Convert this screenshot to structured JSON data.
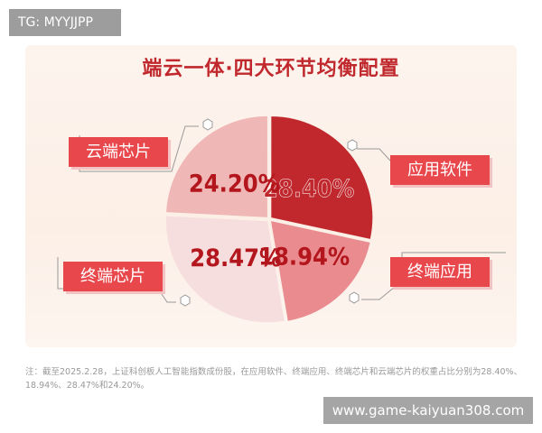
{
  "overlay_tag": "TG: MYYJJPP",
  "watermark": "www.game-kaiyuan308.com",
  "chart_data": {
    "type": "pie",
    "title": "端云一体·四大环节均衡配置",
    "slices": [
      {
        "label": "应用软件",
        "value": 28.4,
        "display": "28.40%",
        "color": "#c0282d"
      },
      {
        "label": "终端应用",
        "value": 18.94,
        "display": "18.94%",
        "color": "#e98b8f"
      },
      {
        "label": "终端芯片",
        "value": 28.47,
        "display": "28.47%",
        "color": "#f7dede"
      },
      {
        "label": "云端芯片",
        "value": 24.2,
        "display": "24.20%",
        "color": "#f0b7b7"
      }
    ]
  },
  "note": "注：截至2025.2.28，上证科创板人工智能指数成份股，在应用软件、终端应用、终端芯片和云端芯片的权重占比分别为28.40%、18.94%、28.47%和24.20%。"
}
